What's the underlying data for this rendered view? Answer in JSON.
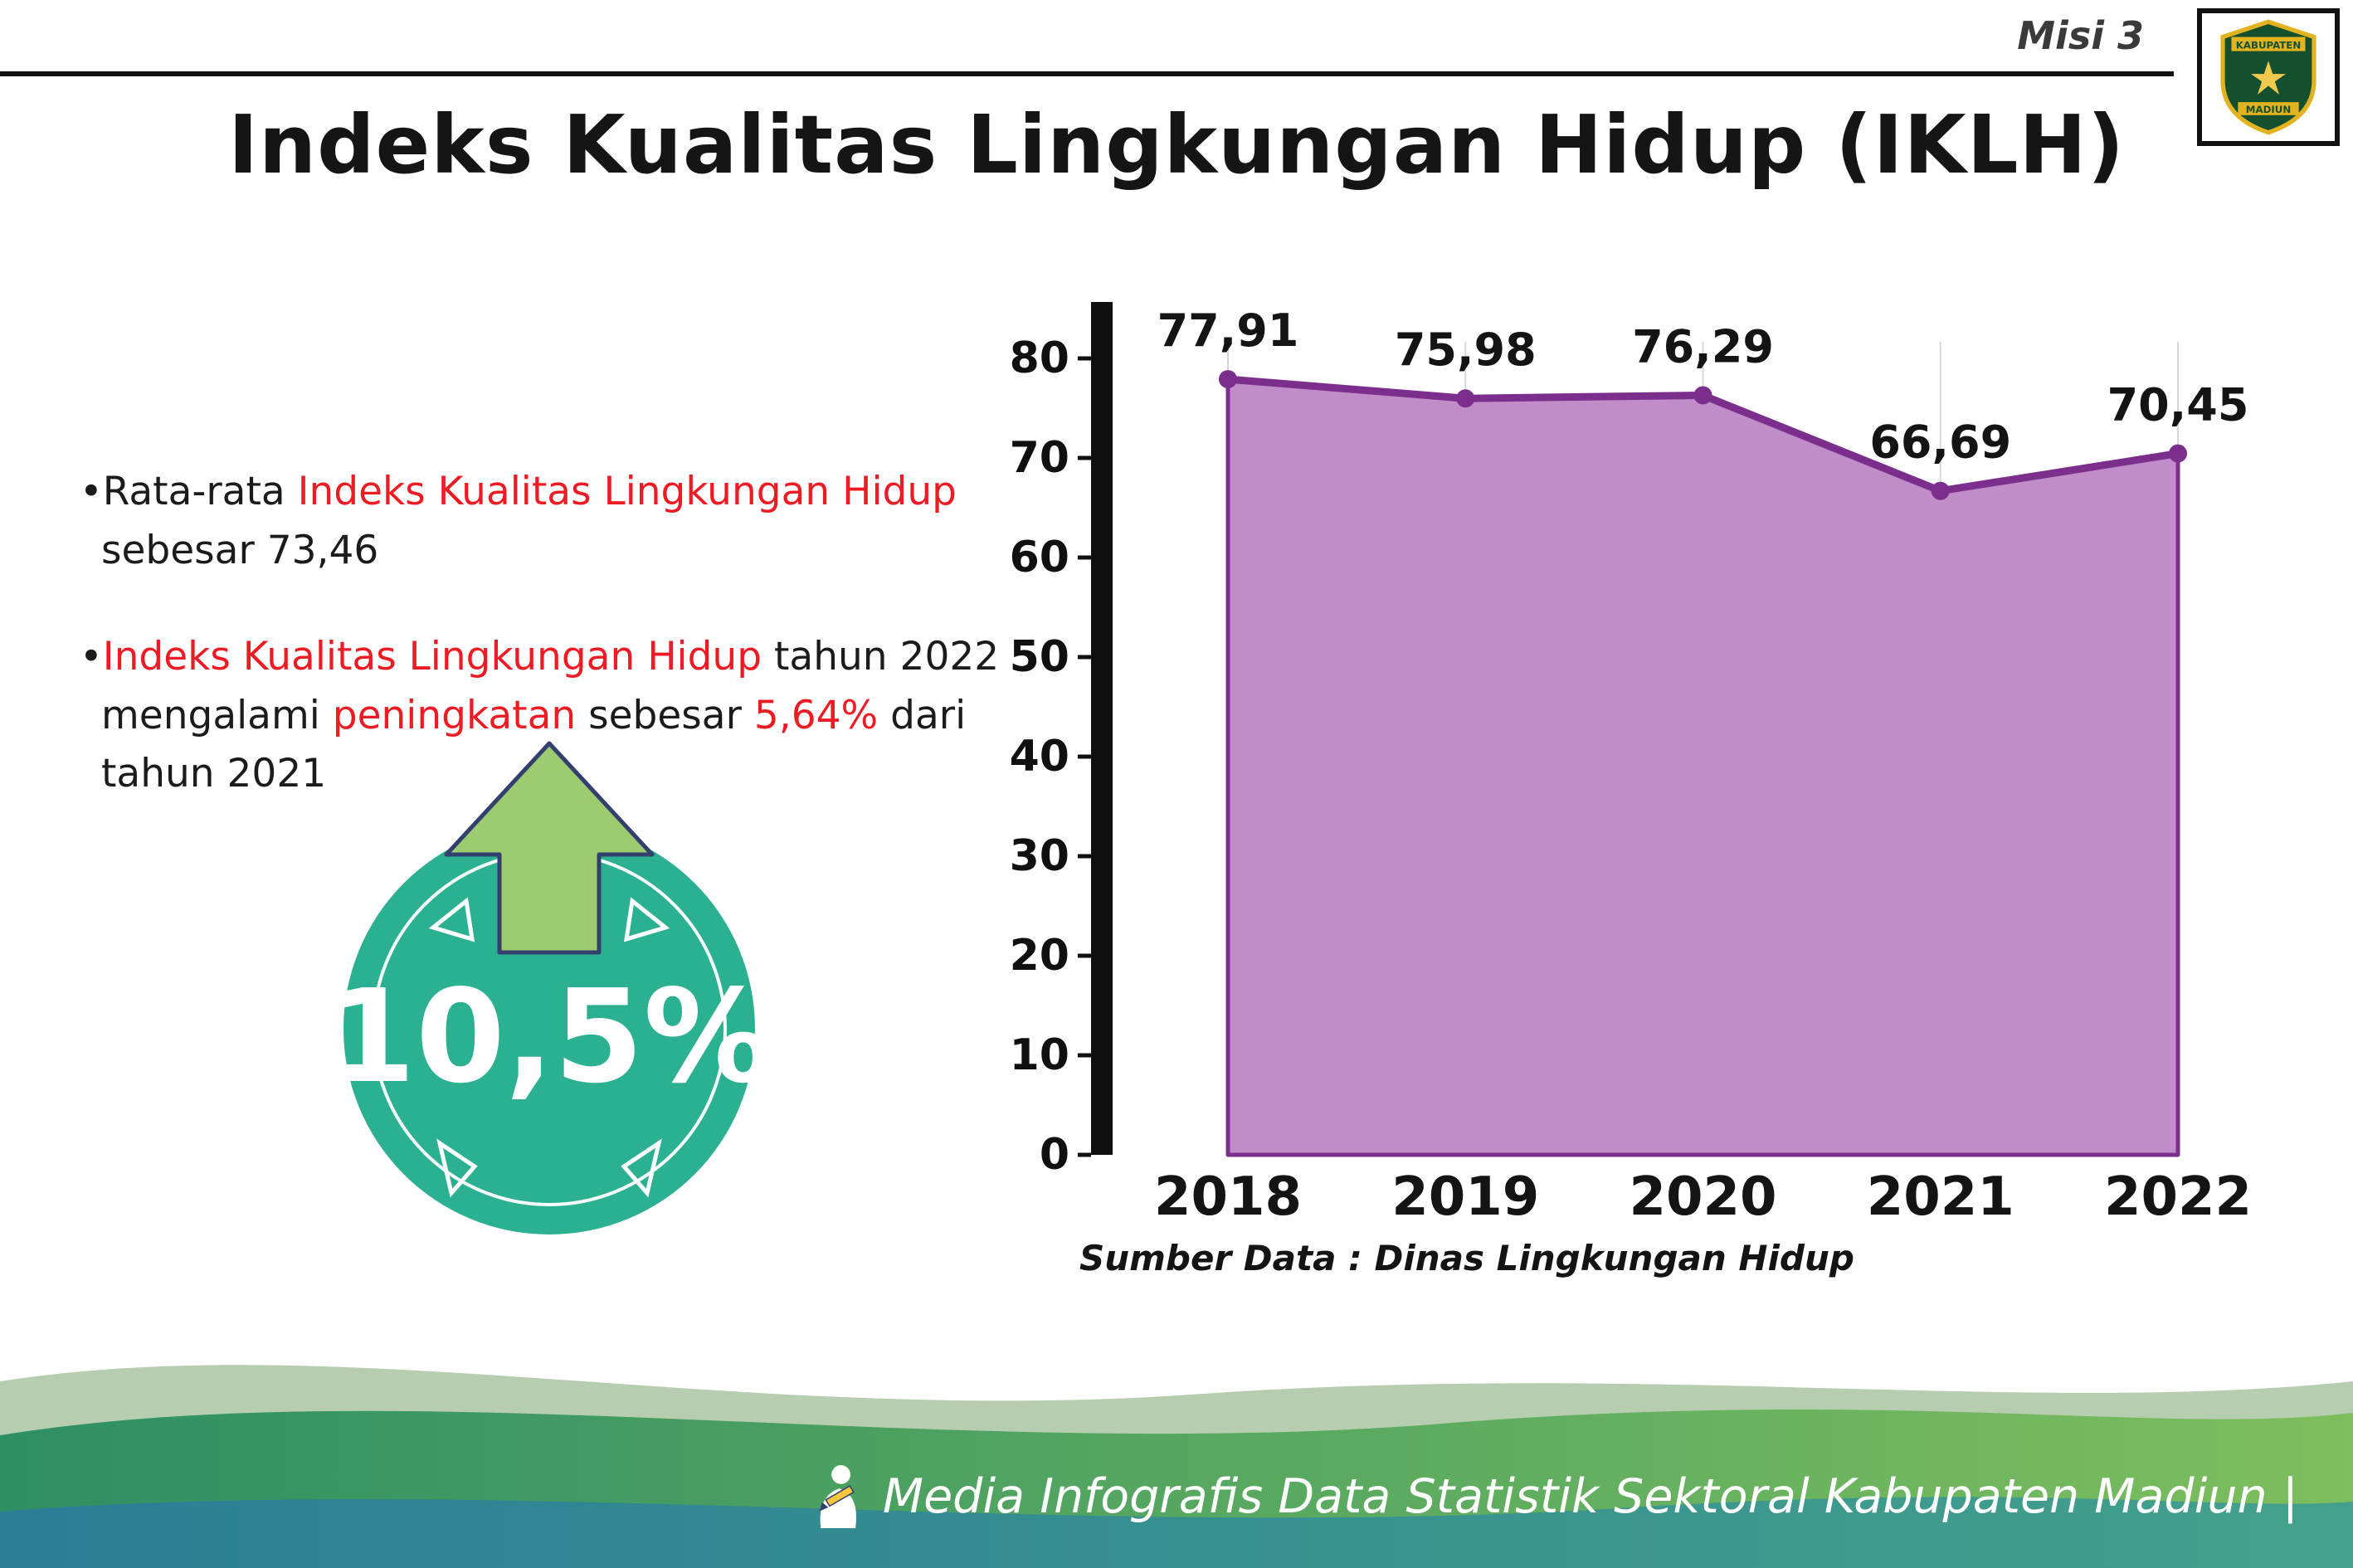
{
  "header": {
    "misi_label": "Misi 3",
    "logo": {
      "name": "kabupaten-madiun-emblem",
      "top_text": "KABUPATEN",
      "bottom_text": "MADIUN"
    }
  },
  "title": "Indeks Kualitas Lingkungan Hidup (IKLH)",
  "bullets": [
    {
      "segments": [
        {
          "text": "•Rata-rata "
        },
        {
          "text": "Indeks Kualitas Lingkungan Hidup",
          "color": "red"
        },
        {
          "br": true
        },
        {
          "text": "sebesar 73,46"
        }
      ]
    },
    {
      "segments": [
        {
          "text": "•"
        },
        {
          "text": "Indeks Kualitas Lingkungan Hidup",
          "color": "red"
        },
        {
          "text": " tahun 2022"
        },
        {
          "br": true
        },
        {
          "text": "mengalami "
        },
        {
          "text": "peningkatan",
          "color": "red"
        },
        {
          "text": " sebesar "
        },
        {
          "text": "5,64%",
          "color": "red"
        },
        {
          "text": " dari"
        },
        {
          "br": true
        },
        {
          "text": "tahun 2021"
        }
      ]
    }
  ],
  "badge": {
    "value": "10,5%",
    "icon": "arrow-up",
    "circle_color": "#2bb191",
    "arrow_color": "#9ccb70"
  },
  "chart_data": {
    "type": "area",
    "title": "",
    "categories": [
      "2018",
      "2019",
      "2020",
      "2021",
      "2022"
    ],
    "values": [
      77.91,
      75.98,
      76.29,
      66.69,
      70.45
    ],
    "value_labels": [
      "77,91",
      "75,98",
      "76,29",
      "66,69",
      "70,45"
    ],
    "ylim": [
      0,
      80
    ],
    "ytick_interval": 10,
    "yticks": [
      0,
      10,
      20,
      30,
      40,
      50,
      60,
      70,
      80
    ],
    "xlabel": "",
    "ylabel": "",
    "grid": "vertical-light",
    "legend": "none",
    "line_color": "#7b2e8c",
    "fill_color": "#c08dc8",
    "source_note": "Sumber Data : Dinas Lingkungan Hidup"
  },
  "footer": {
    "text": "Media Infografis Data Statistik Sektoral Kabupaten Madiun |"
  },
  "colors": {
    "accent_red": "#ed1c24",
    "teal_badge": "#2bb191",
    "arrow_green": "#9ccb70",
    "purple_line": "#7b2e8c",
    "purple_fill": "#c08dc8",
    "footer_sage": "#b7cdb0",
    "footer_green_1": "#2e8f63",
    "footer_green_2": "#7dbe5e",
    "footer_teal_1": "#2a7e96",
    "footer_teal_2": "#43a18b"
  }
}
